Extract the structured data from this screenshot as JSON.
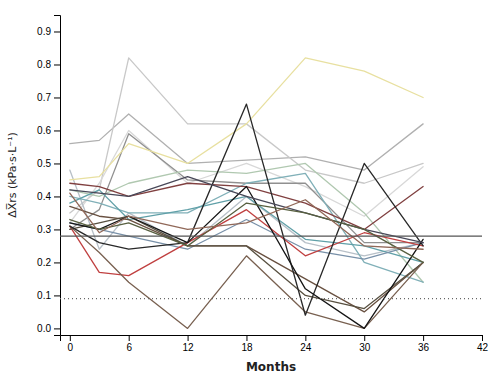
{
  "chart_data": {
    "type": "line",
    "xlabel": "Months",
    "ylabel": "ΔX̅rs (kPa·s·L⁻¹)",
    "xlim": [
      -1,
      42
    ],
    "ylim": [
      -0.02,
      0.95
    ],
    "xticks": [
      0,
      6,
      12,
      18,
      24,
      30,
      36,
      42
    ],
    "yticks": [
      {
        "value": 0,
        "label": "0.0"
      },
      0.1,
      0.2,
      0.3,
      0.4,
      0.5,
      0.6,
      0.7,
      0.8,
      0.9
    ],
    "grid": false,
    "x": [
      0,
      3,
      6,
      12,
      18,
      24,
      30,
      36
    ],
    "series": [
      {
        "color": "#b0b0b0",
        "values": [
          0.56,
          0.57,
          0.65,
          0.5,
          0.51,
          0.52,
          0.48,
          0.62
        ]
      },
      {
        "color": "#c8c8c8",
        "values": [
          0.35,
          0.42,
          0.82,
          0.62,
          0.62,
          0.48,
          0.44,
          0.5
        ]
      },
      {
        "color": "#d8d8d8",
        "values": [
          0.32,
          0.44,
          0.6,
          0.44,
          0.5,
          0.43,
          0.34,
          0.49
        ]
      },
      {
        "color": "#909090",
        "values": [
          0.3,
          0.36,
          0.59,
          0.45,
          0.44,
          0.44,
          0.26,
          0.26
        ]
      },
      {
        "color": "#b8c0c8",
        "values": [
          0.48,
          0.24,
          0.35,
          0.25,
          0.4,
          0.26,
          0.22,
          0.26
        ]
      },
      {
        "color": "#e8e0a0",
        "values": [
          0.45,
          0.46,
          0.56,
          0.5,
          0.62,
          0.82,
          0.78,
          0.7
        ]
      },
      {
        "color": "#b0c8b0",
        "values": [
          0.42,
          0.4,
          0.44,
          0.48,
          0.47,
          0.5,
          0.35,
          0.14
        ]
      },
      {
        "color": "#80b0b8",
        "values": [
          0.4,
          0.38,
          0.35,
          0.35,
          0.44,
          0.47,
          0.2,
          0.14
        ]
      },
      {
        "color": "#60a0a8",
        "values": [
          0.38,
          0.42,
          0.33,
          0.36,
          0.4,
          0.27,
          0.25,
          0.2
        ]
      },
      {
        "color": "#7890a8",
        "values": [
          0.32,
          0.3,
          0.28,
          0.24,
          0.33,
          0.24,
          0.21,
          0.26
        ]
      },
      {
        "color": "#c04040",
        "values": [
          0.31,
          0.17,
          0.16,
          0.26,
          0.36,
          0.22,
          0.29,
          0.25
        ]
      },
      {
        "color": "#804040",
        "values": [
          0.44,
          0.43,
          0.4,
          0.44,
          0.43,
          0.38,
          0.3,
          0.43
        ]
      },
      {
        "color": "#685040",
        "values": [
          0.37,
          0.34,
          0.33,
          0.25,
          0.25,
          0.15,
          0.05,
          0.2
        ]
      },
      {
        "color": "#585040",
        "values": [
          0.3,
          0.32,
          0.34,
          0.25,
          0.25,
          0.1,
          0.06,
          0.2
        ]
      },
      {
        "color": "#786050",
        "values": [
          0.31,
          0.23,
          0.14,
          0.0,
          0.22,
          0.05,
          0.0,
          0.2
        ]
      },
      {
        "color": "#282828",
        "values": [
          0.31,
          0.26,
          0.24,
          0.26,
          0.68,
          0.04,
          0.5,
          0.25
        ]
      },
      {
        "color": "#141414",
        "values": [
          0.32,
          0.3,
          0.34,
          0.26,
          0.43,
          0.12,
          0.0,
          0.27
        ]
      },
      {
        "color": "#484858",
        "values": [
          0.42,
          0.41,
          0.4,
          0.46,
          0.4,
          0.35,
          0.3,
          0.26
        ]
      },
      {
        "color": "#586040",
        "values": [
          0.33,
          0.3,
          0.32,
          0.25,
          0.38,
          0.35,
          0.3,
          0.2
        ]
      },
      {
        "color": "#906858",
        "values": [
          0.41,
          0.29,
          0.34,
          0.3,
          0.32,
          0.39,
          0.25,
          0.24
        ]
      }
    ],
    "reference_lines": [
      {
        "value": 0.28,
        "color": "#555555",
        "line_style": "solid"
      },
      {
        "value": 0.09,
        "color": "#666666",
        "line_style": "dotted"
      }
    ]
  }
}
